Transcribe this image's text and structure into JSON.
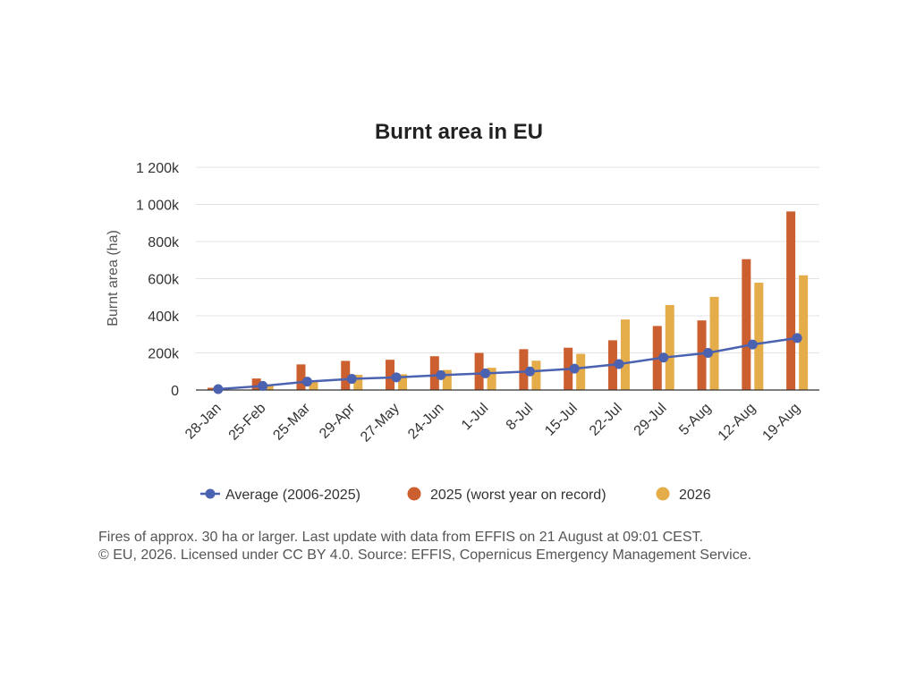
{
  "chart_data": {
    "type": "bar",
    "title": "Burnt area in EU",
    "xlabel": "",
    "ylabel": "Burnt area (ha)",
    "ylim": [
      0,
      1200000
    ],
    "y_ticks": [
      {
        "value": 0,
        "label": "0"
      },
      {
        "value": 200000,
        "label": "200k"
      },
      {
        "value": 400000,
        "label": "400k"
      },
      {
        "value": 600000,
        "label": "600k"
      },
      {
        "value": 800000,
        "label": "800k"
      },
      {
        "value": 1000000,
        "label": "1 000k"
      },
      {
        "value": 1200000,
        "label": "1 200k"
      }
    ],
    "grid": true,
    "legend_position": "bottom",
    "categories": [
      "28-Jan",
      "25-Feb",
      "25-Mar",
      "29-Apr",
      "27-May",
      "24-Jun",
      "1-Jul",
      "8-Jul",
      "15-Jul",
      "22-Jul",
      "29-Jul",
      "5-Aug",
      "12-Aug",
      "19-Aug"
    ],
    "series": [
      {
        "name": "Average (2006-2025)",
        "kind": "line",
        "color": "#4a62b0",
        "values": [
          5000,
          22000,
          45000,
          60000,
          68000,
          80000,
          90000,
          100000,
          115000,
          140000,
          175000,
          200000,
          245000,
          280000
        ]
      },
      {
        "name": "2025 (worst year on record)",
        "kind": "bar",
        "color": "#cc5f2f",
        "values": [
          12000,
          62000,
          138000,
          157000,
          163000,
          182000,
          200000,
          220000,
          228000,
          268000,
          345000,
          375000,
          705000,
          962000
        ]
      },
      {
        "name": "2026",
        "kind": "bar",
        "color": "#e5ac4a",
        "values": [
          4000,
          26000,
          52000,
          82000,
          85000,
          108000,
          120000,
          158000,
          195000,
          380000,
          458000,
          502000,
          578000,
          618000
        ]
      }
    ]
  },
  "footnote": {
    "line1": "Fires of approx. 30 ha or larger. Last update with data from EFFIS on 21 August at 09:01 CEST.",
    "line2": "© EU, 2026. Licensed under CC BY 4.0. Source: EFFIS, Copernicus Emergency Management Service."
  }
}
